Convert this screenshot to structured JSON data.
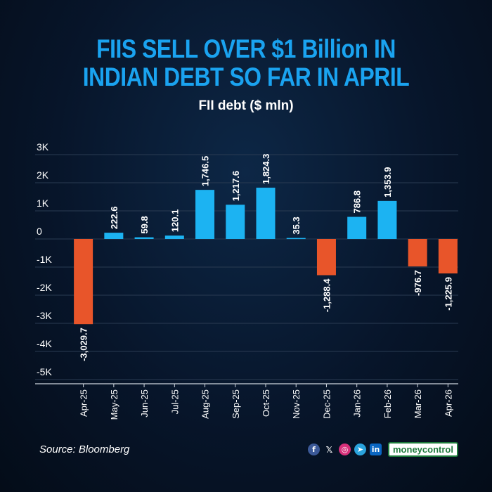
{
  "header": {
    "title_line1": "FIIS SELL OVER $1 Billion IN",
    "title_line2": "INDIAN DEBT SO FAR IN APRIL"
  },
  "chart_data": {
    "type": "bar",
    "title": "FII debt ($ mln)",
    "categories": [
      "Apr-25",
      "May-25",
      "Jun-25",
      "Jul-25",
      "Aug-25",
      "Sep-25",
      "Oct-25",
      "Nov-25",
      "Dec-25",
      "Jan-26",
      "Feb-26",
      "Mar-26",
      "Apr-26"
    ],
    "values": [
      -3029.7,
      222.6,
      59.8,
      120.1,
      1746.5,
      1217.6,
      1824.3,
      35.3,
      -1288.4,
      786.8,
      1353.9,
      -976.7,
      -1225.9
    ],
    "data_labels": [
      "-3,029.7",
      "222.6",
      "59.8",
      "120.1",
      "1,746.5",
      "1,217.6",
      "1,824.3",
      "35.3",
      "-1,288.4",
      "786.8",
      "1,353.9",
      "-976.7",
      "-1,225.9"
    ],
    "yticks": [
      3000,
      2000,
      1000,
      0,
      -1000,
      -2000,
      -3000,
      -4000,
      -5000
    ],
    "ytick_labels": [
      "3K",
      "2K",
      "1K",
      "0",
      "-1K",
      "-2K",
      "-3K",
      "-4K",
      "-5K"
    ],
    "ylim": [
      -5000,
      3000
    ],
    "grid": true,
    "colors": {
      "positive": "#1cb3f2",
      "negative": "#e8552a"
    }
  },
  "footer": {
    "source": "Source: Bloomberg",
    "brand": "moneycontrol",
    "social_icons": [
      "facebook-icon",
      "x-icon",
      "instagram-icon",
      "telegram-icon",
      "linkedin-icon"
    ],
    "social_glyphs": {
      "facebook": "f",
      "x": "𝕏",
      "instagram": "◎",
      "telegram": "➤",
      "linkedin": "in"
    }
  }
}
